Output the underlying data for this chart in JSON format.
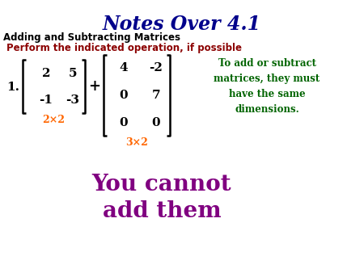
{
  "title": "Notes Over 4.1",
  "title_color": "#00008B",
  "subtitle": "Adding and Subtracting Matrices",
  "subtitle_color": "#000000",
  "instruction": "Perform the indicated operation, if possible",
  "instruction_color": "#8B0000",
  "matrix1_rows": [
    [
      "2",
      "5"
    ],
    [
      "-1",
      "-3"
    ]
  ],
  "matrix2_rows": [
    [
      "4",
      "-2"
    ],
    [
      "0",
      "7"
    ],
    [
      "0",
      "0"
    ]
  ],
  "dim1_label": "2×2",
  "dim2_label": "3×2",
  "dim_color": "#FF6600",
  "note_text": "To add or subtract\nmatrices, they must\nhave the same\ndimensions.",
  "note_color": "#006400",
  "answer_line1": "You cannot",
  "answer_line2": "add them",
  "answer_color": "#800080",
  "bg_color": "#FFFFFF",
  "matrix_color": "#000000",
  "plus_color": "#000000",
  "number_label": "1.",
  "bracket_color": "#000000",
  "title_fontsize": 17,
  "subtitle_fontsize": 8.5,
  "instruction_fontsize": 8.5,
  "matrix_fontsize": 11,
  "dim_fontsize": 9,
  "note_fontsize": 8.5,
  "answer_fontsize": 20,
  "number_fontsize": 11
}
